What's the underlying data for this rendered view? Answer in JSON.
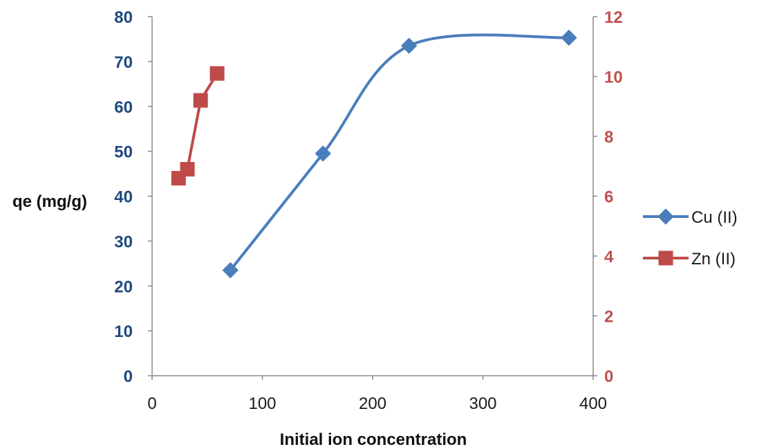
{
  "chart_data": {
    "type": "line",
    "title": "",
    "xlabel": "Initial ion concentration",
    "ylabel": "qe (mg/g)",
    "y2label": "",
    "xlim": [
      0,
      400
    ],
    "ylim": [
      0,
      80
    ],
    "y2lim": [
      0,
      12
    ],
    "x_ticks": [
      "0",
      "100",
      "200",
      "300",
      "400"
    ],
    "y_ticks": [
      "0",
      "10",
      "20",
      "30",
      "40",
      "50",
      "60",
      "70",
      "80"
    ],
    "y2_ticks": [
      "0",
      "2",
      "4",
      "6",
      "8",
      "10",
      "12"
    ],
    "grid": false,
    "legend_position": "right",
    "colors": {
      "left_axis": "#1F497D",
      "right_axis": "#C0504D",
      "axis_line": "#888888"
    },
    "series": [
      {
        "name": "Cu (II)",
        "axis": "left",
        "color": "#4A7EBB",
        "marker": "diamond",
        "smooth": true,
        "x": [
          71,
          155,
          233,
          378
        ],
        "y": [
          23.5,
          49.5,
          73.5,
          75.3
        ]
      },
      {
        "name": "Zn (II)",
        "axis": "right",
        "color": "#BE4B48",
        "marker": "square",
        "smooth": false,
        "x": [
          24,
          32,
          44,
          59
        ],
        "y": [
          6.6,
          6.9,
          9.2,
          10.1
        ]
      }
    ]
  }
}
